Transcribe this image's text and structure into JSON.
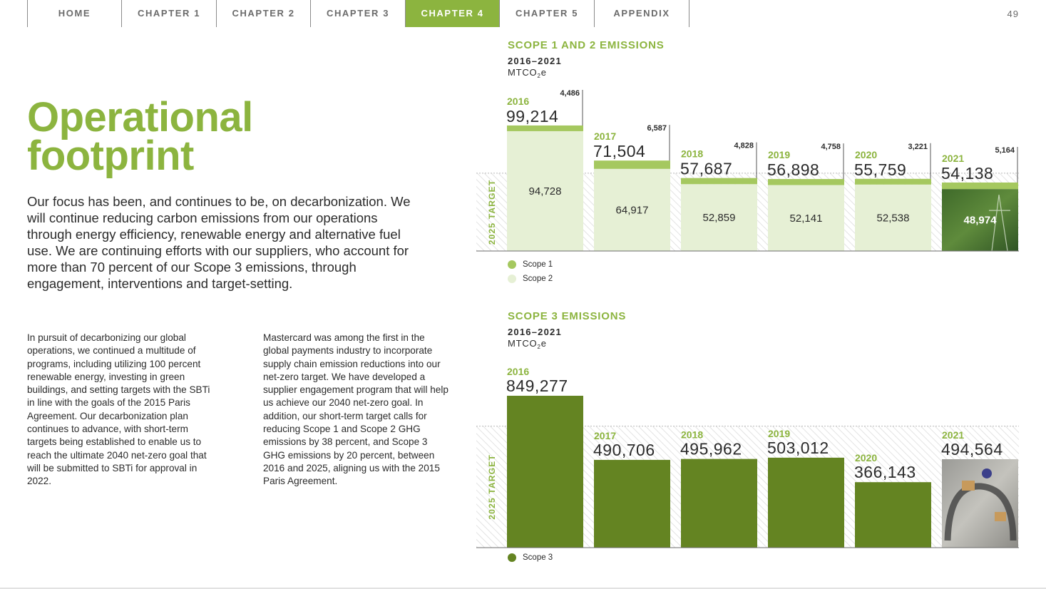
{
  "nav": {
    "tabs": [
      {
        "label": "HOME",
        "width": 133
      },
      {
        "label": "CHAPTER 1",
        "width": 133
      },
      {
        "label": "CHAPTER 2",
        "width": 132
      },
      {
        "label": "CHAPTER 3",
        "width": 133
      },
      {
        "label": "CHAPTER 4",
        "width": 132,
        "active": true
      },
      {
        "label": "CHAPTER 5",
        "width": 133
      },
      {
        "label": "APPENDIX",
        "width": 133
      }
    ],
    "page_number": "49"
  },
  "page": {
    "title_line1": "Operational",
    "title_line2": "footprint",
    "intro": "Our focus has been, and continues to be, on decarbonization. We will continue reducing carbon emissions from our operations through energy efficiency, renewable energy and alternative fuel use. We are continuing efforts with our suppliers, who account for more than 70 percent of our Scope 3 emissions, through engagement, interventions and target-setting.",
    "body_col1": "In pursuit of decarbonizing our global operations, we continued a multitude of programs, including utilizing 100 percent renewable energy, investing in green buildings, and setting targets with the SBTi in line with the goals of the 2015 Paris Agreement. Our decarbonization plan continues to advance, with short-term targets being established to enable us to reach the ultimate 2040 net-zero goal that will be submitted to SBTi for approval in 2022.",
    "body_col2": "Mastercard was among the first in the global payments industry to incorporate supply chain emission reductions into our net-zero target. We have developed a supplier engagement program that will help us achieve our 2040 net-zero goal. In addition, our short-term target calls for reducing Scope 1 and Scope 2 GHG emissions by 38 percent, and Scope 3 GHG emissions by 20 percent, between 2016 and 2025, aligning us with the 2015 Paris Agreement."
  },
  "colors": {
    "accent": "#8cb43f",
    "scope1": "#a5c85f",
    "scope2": "#e6f0d5",
    "scope3": "#648422",
    "text": "#2b2b2b",
    "nav_text": "#6b6b6b"
  },
  "chart_data": [
    {
      "type": "bar",
      "stacked": true,
      "title": "SCOPE 1 AND 2 EMISSIONS",
      "years_label": "2016–2021",
      "unit_main": "MTCO",
      "unit_sub": "2",
      "unit_suffix": "e",
      "target_label": "2025 TARGET",
      "categories": [
        "2016",
        "2017",
        "2018",
        "2019",
        "2020",
        "2021"
      ],
      "series": [
        {
          "name": "Scope 1",
          "values": [
            4486,
            6587,
            4828,
            4758,
            3221,
            5164
          ]
        },
        {
          "name": "Scope 2",
          "values": [
            94728,
            64917,
            52859,
            52141,
            52538,
            48974
          ]
        }
      ],
      "totals": [
        "99,214",
        "71,504",
        "57,687",
        "56,898",
        "55,759",
        "54,138"
      ],
      "scope1_labels": [
        "4,486",
        "6,587",
        "4,828",
        "4,758",
        "3,221",
        "5,164"
      ],
      "scope2_labels": [
        "94,728",
        "64,917",
        "52,859",
        "52,141",
        "52,538",
        "48,974"
      ],
      "target_value": 61513,
      "legend_position": "bottom-left"
    },
    {
      "type": "bar",
      "title": "SCOPE 3 EMISSIONS",
      "years_label": "2016–2021",
      "unit_main": "MTCO",
      "unit_sub": "2",
      "unit_suffix": "e",
      "target_label": "2025 TARGET",
      "categories": [
        "2016",
        "2017",
        "2018",
        "2019",
        "2020",
        "2021"
      ],
      "series": [
        {
          "name": "Scope 3",
          "values": [
            849277,
            490706,
            495962,
            503012,
            366143,
            494564
          ]
        }
      ],
      "value_labels": [
        "849,277",
        "490,706",
        "495,962",
        "503,012",
        "366,143",
        "494,564"
      ],
      "target_value": 679422,
      "legend_position": "bottom-left"
    }
  ]
}
